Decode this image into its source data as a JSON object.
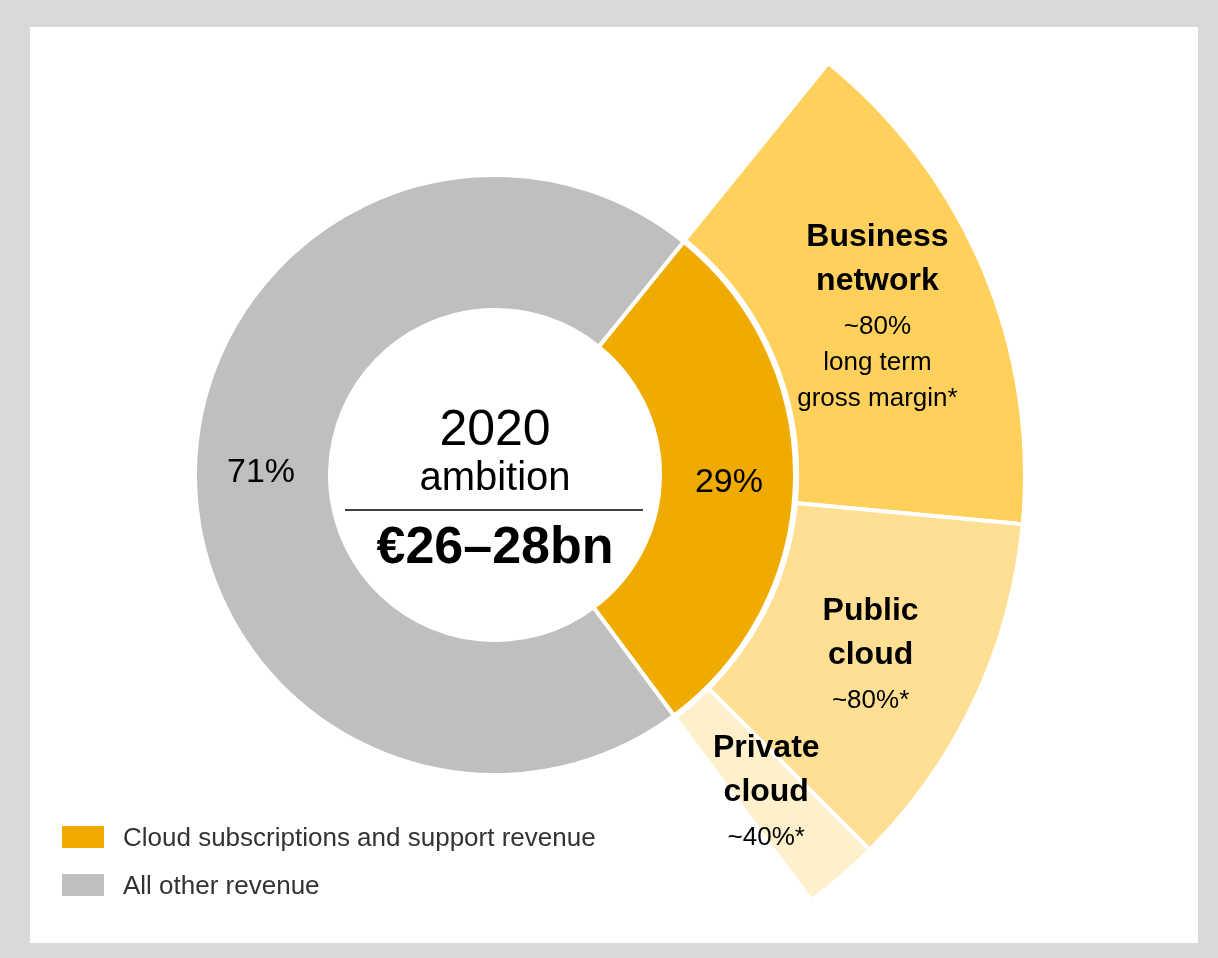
{
  "chart_data": [
    {
      "type": "donut",
      "title": "2020 ambition",
      "subtitle": "€26–28bn",
      "categories": [
        "Cloud subscriptions and support revenue",
        "All other revenue"
      ],
      "values": [
        29,
        71
      ],
      "colors": [
        "#f0ab00",
        "#bfbfbf"
      ],
      "value_labels": [
        "29%",
        "71%"
      ],
      "legend": "bottom left"
    },
    {
      "type": "donut",
      "categories": [
        "Business network",
        "Public cloud",
        "Private cloud"
      ],
      "values": [
        54,
        38,
        8
      ],
      "colors": [
        "#ffd15c",
        "#ffdf94",
        "#fff0cc"
      ],
      "annotations": [
        {
          "text": "~80%\nlong term\ngross margin*",
          "x": "Business network"
        },
        {
          "text": "~80%*",
          "x": "Public cloud"
        },
        {
          "text": "~40%*",
          "x": "Private cloud"
        }
      ]
    }
  ]
}
